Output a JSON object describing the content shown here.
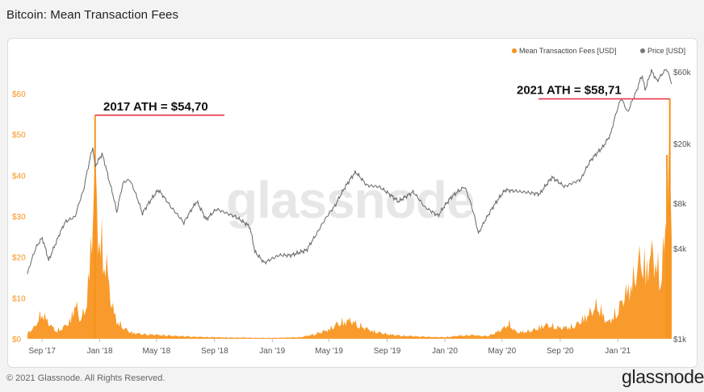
{
  "header": {
    "title": "Bitcoin: Mean Transaction Fees"
  },
  "footer": {
    "copyright": "© 2021 Glassnode. All Rights Reserved.",
    "logo": "glassnode"
  },
  "watermark": "glassnode",
  "colors": {
    "fees": "#f7931a",
    "price": "#666666",
    "ath_line": "#e8394d",
    "grid": "#eeeeee"
  },
  "chart_data": {
    "type": "area",
    "legend": [
      {
        "name": "Mean Transaction Fees [USD]",
        "color": "#f7931a"
      },
      {
        "name": "Price [USD]",
        "color": "#777777"
      }
    ],
    "legend_position": "top-right",
    "x_ticks": [
      "Sep '17",
      "Jan '18",
      "May '18",
      "Sep '18",
      "Jan '19",
      "May '19",
      "Sep '19",
      "Jan '20",
      "May '20",
      "Sep '20",
      "Jan '21"
    ],
    "x_range": [
      "2017-08-01",
      "2021-04-25"
    ],
    "y_left": {
      "ticks": [
        "$0",
        "$10",
        "$20",
        "$30",
        "$40",
        "$50",
        "$60"
      ],
      "range": [
        0,
        60
      ]
    },
    "y_right": {
      "ticks": [
        "$1k",
        "$4k",
        "$8k",
        "$20k",
        "$60k"
      ],
      "scale": "log",
      "range": [
        1000,
        60000
      ]
    },
    "grid": false,
    "annotations": [
      {
        "text": "2017 ATH = $54,70",
        "date": "2017-12-22",
        "value": 54.7
      },
      {
        "text": "2021 ATH = $58,71",
        "date": "2021-04-21",
        "value": 58.71
      }
    ],
    "series": [
      {
        "name": "Mean Transaction Fees [USD]",
        "axis": "left",
        "points": [
          [
            "2017-08-01",
            2.0
          ],
          [
            "2017-08-15",
            3.5
          ],
          [
            "2017-09-01",
            8.5
          ],
          [
            "2017-09-15",
            5.0
          ],
          [
            "2017-10-01",
            2.5
          ],
          [
            "2017-10-15",
            3.5
          ],
          [
            "2017-11-01",
            6.0
          ],
          [
            "2017-11-10",
            12.0
          ],
          [
            "2017-11-20",
            6.0
          ],
          [
            "2017-12-01",
            9.0
          ],
          [
            "2017-12-08",
            18.0
          ],
          [
            "2017-12-15",
            34.0
          ],
          [
            "2017-12-22",
            54.7
          ],
          [
            "2017-12-28",
            35.0
          ],
          [
            "2018-01-05",
            30.0
          ],
          [
            "2018-01-15",
            24.0
          ],
          [
            "2018-01-25",
            12.0
          ],
          [
            "2018-02-05",
            6.0
          ],
          [
            "2018-02-20",
            3.5
          ],
          [
            "2018-03-10",
            2.0
          ],
          [
            "2018-04-01",
            1.5
          ],
          [
            "2018-05-01",
            1.3
          ],
          [
            "2018-06-01",
            1.0
          ],
          [
            "2018-07-01",
            0.8
          ],
          [
            "2018-08-01",
            0.6
          ],
          [
            "2018-09-01",
            0.5
          ],
          [
            "2018-10-01",
            0.4
          ],
          [
            "2018-11-01",
            0.4
          ],
          [
            "2018-12-01",
            0.3
          ],
          [
            "2019-01-01",
            0.3
          ],
          [
            "2019-02-01",
            0.4
          ],
          [
            "2019-03-01",
            0.5
          ],
          [
            "2019-04-01",
            1.5
          ],
          [
            "2019-05-01",
            3.0
          ],
          [
            "2019-05-20",
            5.0
          ],
          [
            "2019-06-15",
            6.0
          ],
          [
            "2019-07-01",
            4.5
          ],
          [
            "2019-08-01",
            2.5
          ],
          [
            "2019-09-01",
            1.5
          ],
          [
            "2019-10-01",
            1.0
          ],
          [
            "2019-11-01",
            0.8
          ],
          [
            "2019-12-01",
            0.6
          ],
          [
            "2020-01-01",
            0.5
          ],
          [
            "2020-02-01",
            1.0
          ],
          [
            "2020-03-01",
            1.2
          ],
          [
            "2020-04-01",
            0.8
          ],
          [
            "2020-05-01",
            3.0
          ],
          [
            "2020-05-15",
            5.0
          ],
          [
            "2020-06-01",
            2.0
          ],
          [
            "2020-07-01",
            2.5
          ],
          [
            "2020-08-01",
            4.5
          ],
          [
            "2020-09-01",
            3.5
          ],
          [
            "2020-10-01",
            4.0
          ],
          [
            "2020-11-01",
            8.0
          ],
          [
            "2020-11-20",
            11.0
          ],
          [
            "2020-12-10",
            5.0
          ],
          [
            "2021-01-01",
            9.0
          ],
          [
            "2021-01-15",
            14.0
          ],
          [
            "2021-02-01",
            18.0
          ],
          [
            "2021-02-20",
            27.0
          ],
          [
            "2021-03-01",
            22.0
          ],
          [
            "2021-03-15",
            28.0
          ],
          [
            "2021-03-31",
            20.0
          ],
          [
            "2021-04-10",
            30.0
          ],
          [
            "2021-04-15",
            45.0
          ],
          [
            "2021-04-21",
            58.71
          ],
          [
            "2021-04-25",
            30.0
          ]
        ]
      },
      {
        "name": "Price [USD]",
        "axis": "right",
        "points": [
          [
            "2017-08-01",
            2700
          ],
          [
            "2017-08-20",
            4100
          ],
          [
            "2017-09-01",
            4700
          ],
          [
            "2017-09-15",
            3300
          ],
          [
            "2017-10-01",
            4400
          ],
          [
            "2017-10-20",
            6000
          ],
          [
            "2017-11-10",
            6500
          ],
          [
            "2017-11-28",
            9800
          ],
          [
            "2017-12-10",
            15000
          ],
          [
            "2017-12-17",
            19000
          ],
          [
            "2017-12-22",
            14000
          ],
          [
            "2018-01-06",
            17000
          ],
          [
            "2018-01-20",
            11500
          ],
          [
            "2018-02-06",
            6900
          ],
          [
            "2018-02-20",
            11000
          ],
          [
            "2018-03-05",
            11500
          ],
          [
            "2018-04-01",
            6800
          ],
          [
            "2018-05-05",
            9800
          ],
          [
            "2018-06-01",
            7500
          ],
          [
            "2018-06-28",
            5900
          ],
          [
            "2018-07-25",
            8200
          ],
          [
            "2018-08-14",
            6200
          ],
          [
            "2018-09-05",
            7300
          ],
          [
            "2018-10-15",
            6500
          ],
          [
            "2018-11-14",
            5600
          ],
          [
            "2018-11-25",
            3800
          ],
          [
            "2018-12-15",
            3200
          ],
          [
            "2019-01-15",
            3600
          ],
          [
            "2019-02-10",
            3600
          ],
          [
            "2019-03-15",
            3900
          ],
          [
            "2019-04-05",
            5000
          ],
          [
            "2019-05-15",
            7800
          ],
          [
            "2019-06-26",
            12900
          ],
          [
            "2019-07-20",
            10500
          ],
          [
            "2019-08-15",
            10300
          ],
          [
            "2019-09-25",
            8200
          ],
          [
            "2019-10-26",
            9500
          ],
          [
            "2019-11-20",
            7500
          ],
          [
            "2019-12-18",
            6600
          ],
          [
            "2020-01-15",
            8800
          ],
          [
            "2020-02-12",
            10300
          ],
          [
            "2020-03-12",
            5000
          ],
          [
            "2020-04-01",
            6600
          ],
          [
            "2020-05-08",
            9800
          ],
          [
            "2020-06-15",
            9500
          ],
          [
            "2020-07-20",
            9200
          ],
          [
            "2020-08-15",
            11900
          ],
          [
            "2020-09-10",
            10300
          ],
          [
            "2020-10-15",
            11500
          ],
          [
            "2020-11-05",
            15500
          ],
          [
            "2020-12-01",
            19000
          ],
          [
            "2020-12-17",
            23000
          ],
          [
            "2021-01-08",
            40000
          ],
          [
            "2021-01-22",
            32000
          ],
          [
            "2021-02-10",
            45000
          ],
          [
            "2021-02-21",
            57000
          ],
          [
            "2021-02-28",
            45000
          ],
          [
            "2021-03-13",
            61000
          ],
          [
            "2021-03-25",
            52000
          ],
          [
            "2021-04-14",
            63000
          ],
          [
            "2021-04-21",
            55000
          ],
          [
            "2021-04-25",
            50000
          ]
        ]
      }
    ]
  }
}
